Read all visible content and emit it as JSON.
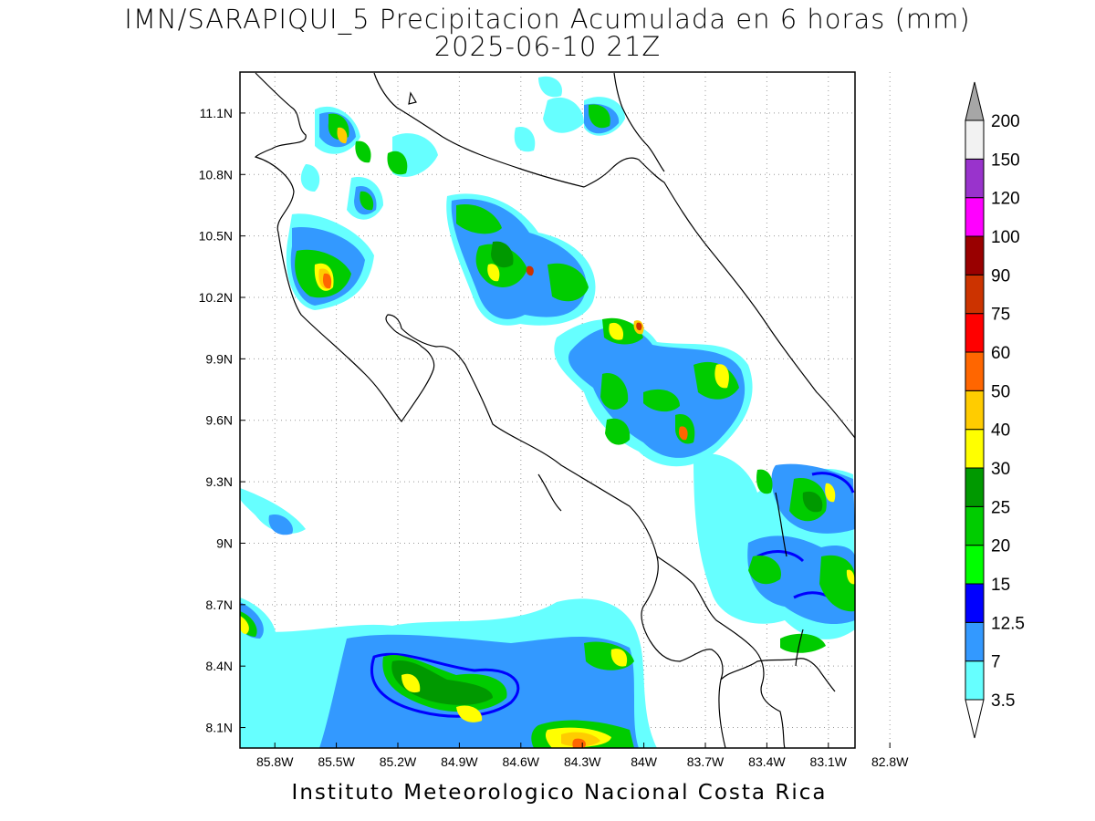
{
  "title_line1": "IMN/SARAPIQUI_5 Precipitacion Acumulada en 6 horas (mm)",
  "title_line2": "2025-06-10 21Z",
  "footer": "Instituto Meteorologico Nacional Costa Rica",
  "map": {
    "lon_range": [
      -85.97,
      -82.97
    ],
    "lat_range": [
      8.0,
      11.3
    ],
    "lon_ticks": [
      {
        "value": -85.8,
        "label": "85.8W"
      },
      {
        "value": -85.5,
        "label": "85.5W"
      },
      {
        "value": -85.2,
        "label": "85.2W"
      },
      {
        "value": -84.9,
        "label": "84.9W"
      },
      {
        "value": -84.6,
        "label": "84.6W"
      },
      {
        "value": -84.3,
        "label": "84.3W"
      },
      {
        "value": -84.0,
        "label": "84W"
      },
      {
        "value": -83.7,
        "label": "83.7W"
      },
      {
        "value": -83.4,
        "label": "83.4W"
      },
      {
        "value": -83.1,
        "label": "83.1W"
      },
      {
        "value": -82.8,
        "label": "82.8W"
      }
    ],
    "lat_ticks": [
      {
        "value": 8.1,
        "label": "8.1N"
      },
      {
        "value": 8.4,
        "label": "8.4N"
      },
      {
        "value": 8.7,
        "label": "8.7N"
      },
      {
        "value": 9.0,
        "label": "9N"
      },
      {
        "value": 9.3,
        "label": "9.3N"
      },
      {
        "value": 9.6,
        "label": "9.6N"
      },
      {
        "value": 9.9,
        "label": "9.9N"
      },
      {
        "value": 10.2,
        "label": "10.2N"
      },
      {
        "value": 10.5,
        "label": "10.5N"
      },
      {
        "value": 10.8,
        "label": "10.8N"
      },
      {
        "value": 11.1,
        "label": "11.1N"
      }
    ],
    "grid": true
  },
  "colorbar": {
    "levels": [
      "3.5",
      "7",
      "12.5",
      "15",
      "20",
      "25",
      "30",
      "40",
      "50",
      "60",
      "75",
      "90",
      "100",
      "120",
      "150",
      "200"
    ],
    "colors": [
      "#ffffff",
      "#66ffff",
      "#3399ff",
      "#0000ff",
      "#00ff00",
      "#00cc00",
      "#009900",
      "#ffff00",
      "#ffcc00",
      "#ff6600",
      "#ff0000",
      "#cc3300",
      "#990000",
      "#ff00ff",
      "#9933cc",
      "#f2f2f2",
      "#a6a6a6"
    ]
  }
}
